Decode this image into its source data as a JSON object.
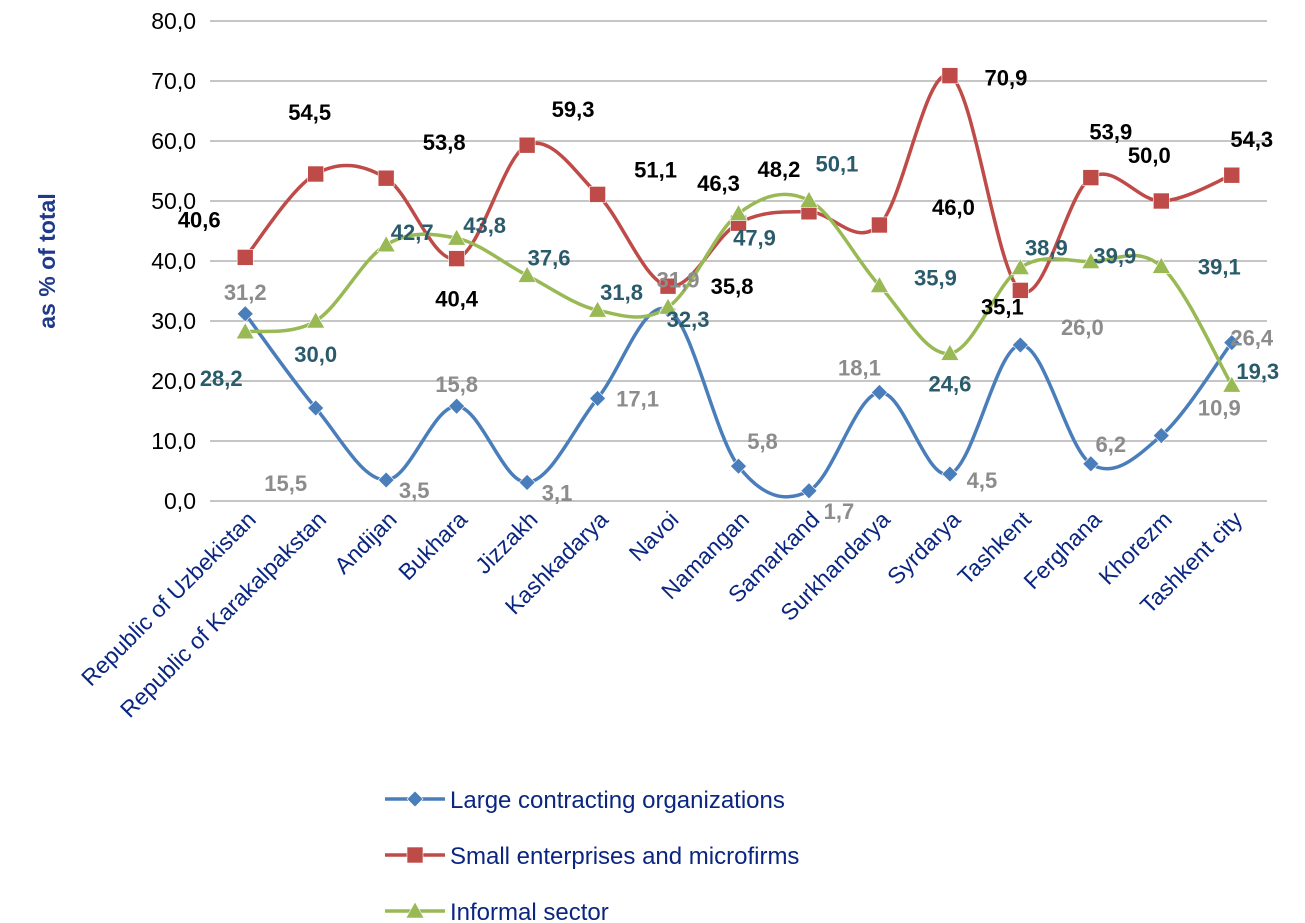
{
  "chart_data": {
    "type": "line",
    "ylabel": "as % of total",
    "ylim": [
      0,
      80
    ],
    "y_ticks": [
      "0,0",
      "10,0",
      "20,0",
      "30,0",
      "40,0",
      "50,0",
      "60,0",
      "70,0",
      "80,0"
    ],
    "grid": "horizontal",
    "smooth": true,
    "legend_position": "bottom",
    "categories": [
      "Republic of Uzbekistan",
      "Republic of Karakalpakstan",
      "Andijan",
      "Bukhara",
      "Jizzakh",
      "Kashkadarya",
      "Navoi",
      "Namangan",
      "Samarkand",
      "Surkhandarya",
      "Syrdarya",
      "Tashkent",
      "Ferghana",
      "Khorezm",
      "Tashkent city"
    ],
    "series": [
      {
        "name": "Large contracting organizations",
        "color": "#4a7ebb",
        "marker": "diamond",
        "label_color": "#8c8c8c",
        "values": [
          31.2,
          15.5,
          3.5,
          15.8,
          3.1,
          17.1,
          31.9,
          5.8,
          1.7,
          18.1,
          4.5,
          26.0,
          6.2,
          10.9,
          26.4
        ],
        "labels": [
          "31,2",
          "15,5",
          "3,5",
          "15,8",
          "3,1",
          "17,1",
          "31,9",
          "5,8",
          "1,7",
          "18,1",
          "4,5",
          "26,0",
          "6,2",
          "10,9",
          "26,4"
        ]
      },
      {
        "name": "Small enterprises and microfirms",
        "color": "#be4b48",
        "marker": "square",
        "label_color": "#000000",
        "values": [
          40.6,
          54.5,
          53.8,
          40.4,
          59.3,
          51.1,
          35.8,
          46.3,
          48.2,
          46.0,
          70.9,
          35.1,
          53.9,
          50.0,
          54.3
        ],
        "labels": [
          "40,6",
          "54,5",
          "53,8",
          "40,4",
          "59,3",
          "51,1",
          "35,8",
          "46,3",
          "48,2",
          "46,0",
          "70,9",
          "35,1",
          "53,9",
          "50,0",
          "54,3"
        ]
      },
      {
        "name": "Informal sector",
        "color": "#98b954",
        "marker": "triangle",
        "label_color": "#2a5b6b",
        "values": [
          28.2,
          30.0,
          42.7,
          43.8,
          37.6,
          31.8,
          32.3,
          47.9,
          50.1,
          35.9,
          24.6,
          38.9,
          39.9,
          39.1,
          19.3
        ],
        "labels": [
          "28,2",
          "30,0",
          "42,7",
          "43,8",
          "37,6",
          "31,8",
          "32,3",
          "47,9",
          "50,1",
          "35,9",
          "24,6",
          "38,9",
          "39,9",
          "39,1",
          "19,3"
        ]
      }
    ]
  }
}
